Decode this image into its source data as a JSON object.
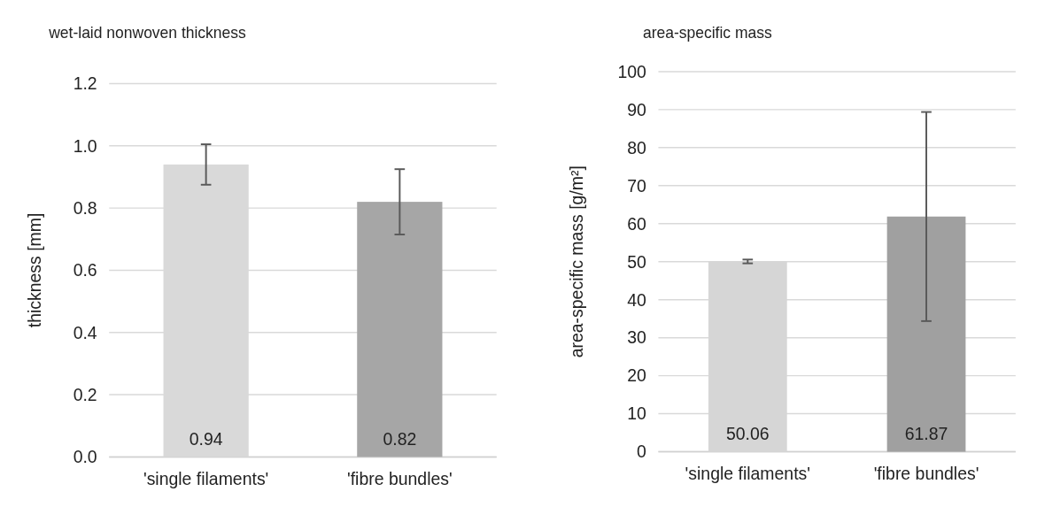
{
  "chart_data": [
    {
      "type": "bar",
      "title": "wet-laid nonwoven thickness",
      "ylabel": "thickness [mm]",
      "categories": [
        "'single filaments'",
        "'fibre bundles'"
      ],
      "values": [
        0.94,
        0.82
      ],
      "colors": [
        "#d9d9d9",
        "#a6a6a6"
      ],
      "errors": [
        0.065,
        0.105
      ],
      "ylim": [
        0,
        1.2
      ],
      "yticks": [
        {
          "value": 0,
          "label": "0.0"
        },
        {
          "value": 0.2,
          "label": "0.2"
        },
        {
          "value": 0.4,
          "label": "0.4"
        },
        {
          "value": 0.6,
          "label": "0.6"
        },
        {
          "value": 0.8,
          "label": "0.8"
        },
        {
          "value": 1,
          "label": "1.0"
        },
        {
          "value": 1.2,
          "label": "1.2"
        }
      ],
      "grid": "y",
      "data_labels": true
    },
    {
      "type": "bar",
      "title": "area-specific mass",
      "ylabel": "area-specific mass [g/m²]",
      "categories": [
        "'single filaments'",
        "'fibre bundles'"
      ],
      "values": [
        50.06,
        61.87
      ],
      "colors": [
        "#d6d6d6",
        "#a0a0a0"
      ],
      "errors": [
        0.5,
        27.5
      ],
      "ylim": [
        0,
        100
      ],
      "yticks": [
        0,
        10,
        20,
        30,
        40,
        50,
        60,
        70,
        80,
        90,
        100
      ],
      "grid": "y",
      "data_labels": true
    }
  ]
}
